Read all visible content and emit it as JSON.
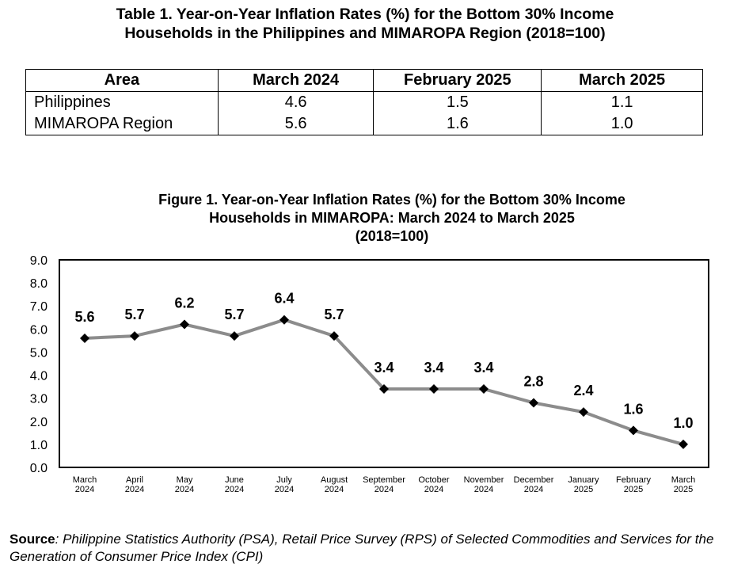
{
  "table": {
    "title_line1": "Table 1. Year-on-Year Inflation Rates (%) for the Bottom 30% Income",
    "title_line2": "Households in the Philippines and MIMAROPA Region (2018=100)",
    "headers": [
      "Area",
      "March 2024",
      "February 2025",
      "March 2025"
    ],
    "rows": [
      [
        "Philippines",
        "4.6",
        "1.5",
        "1.1"
      ],
      [
        "MIMAROPA Region",
        "5.6",
        "1.6",
        "1.0"
      ]
    ]
  },
  "figure": {
    "title_line1": "Figure 1. Year-on-Year Inflation Rates (%) for the Bottom 30% Income",
    "title_line2": "Households in MIMAROPA: March 2024 to March 2025",
    "title_line3": "(2018=100)"
  },
  "chart_data": {
    "type": "line",
    "title": "Figure 1. Year-on-Year Inflation Rates (%) for the Bottom 30% Income Households in MIMAROPA: March 2024 to March 2025 (2018=100)",
    "categories": [
      [
        "March",
        "2024"
      ],
      [
        "April",
        "2024"
      ],
      [
        "May",
        "2024"
      ],
      [
        "June",
        "2024"
      ],
      [
        "July",
        "2024"
      ],
      [
        "August",
        "2024"
      ],
      [
        "September",
        "2024"
      ],
      [
        "October",
        "2024"
      ],
      [
        "November",
        "2024"
      ],
      [
        "December",
        "2024"
      ],
      [
        "January",
        "2025"
      ],
      [
        "February",
        "2025"
      ],
      [
        "March",
        "2025"
      ]
    ],
    "values": [
      5.6,
      5.7,
      6.2,
      5.7,
      6.4,
      5.7,
      3.4,
      3.4,
      3.4,
      2.8,
      2.4,
      1.6,
      1.0
    ],
    "data_labels": [
      "5.6",
      "5.7",
      "6.2",
      "5.7",
      "6.4",
      "5.7",
      "3.4",
      "3.4",
      "3.4",
      "2.8",
      "2.4",
      "1.6",
      "1.0"
    ],
    "yticks": [
      "0.0",
      "1.0",
      "2.0",
      "3.0",
      "4.0",
      "5.0",
      "6.0",
      "7.0",
      "8.0",
      "9.0"
    ],
    "ylim": [
      0,
      9
    ],
    "xlabel": "",
    "ylabel": "",
    "grid": false,
    "line_color": "#8c8c8c",
    "marker_color": "#000000"
  },
  "source": {
    "label": "Source",
    "text_plain": ": Philippine Statistics Authority (PSA), ",
    "text_italic": "Retail Price Survey (RPS) of Selected Commodities and Services for the Generation of Consumer Price Index (CPI)"
  }
}
